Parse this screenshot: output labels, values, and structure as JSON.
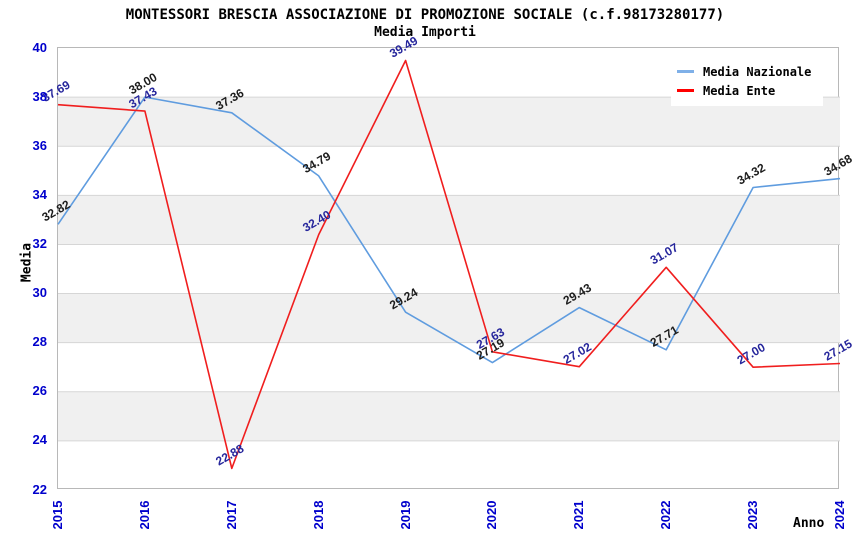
{
  "chart": {
    "title": "MONTESSORI BRESCIA ASSOCIAZIONE DI PROMOZIONE SOCIALE (c.f.98173280177)",
    "subtitle": "Media Importi",
    "xlabel": "Anno",
    "ylabel": "Media"
  },
  "legend": {
    "items": [
      {
        "label": "Media Nazionale",
        "color": "#7fb0e8"
      },
      {
        "label": "Media Ente",
        "color": "#ff0000"
      }
    ]
  },
  "colors": {
    "tick_label": "#0000cc",
    "grid_line": "#d6d6d6",
    "band_gray": "#f0f0f0",
    "frame": "#b8b8b8"
  },
  "chart_data": {
    "type": "line",
    "title": "Media Importi",
    "xlabel": "Anno",
    "ylabel": "Media",
    "x": [
      2015,
      2016,
      2017,
      2018,
      2019,
      2020,
      2021,
      2022,
      2023,
      2024
    ],
    "series": [
      {
        "name": "Media Nazionale",
        "color": "#5f9cdf",
        "label_color": "#1c1c1c",
        "values": [
          32.82,
          38.0,
          37.36,
          34.79,
          29.24,
          27.19,
          29.43,
          27.71,
          34.32,
          34.68
        ]
      },
      {
        "name": "Media Ente",
        "color": "#f01e1e",
        "label_color": "#26269c",
        "values": [
          37.69,
          37.43,
          22.88,
          32.4,
          39.49,
          27.63,
          27.02,
          31.07,
          27.0,
          27.15
        ]
      }
    ],
    "ylim": [
      22,
      40
    ],
    "ytick_step": 2,
    "grid": true,
    "alternating_bands": true,
    "legend_position": "top-right",
    "point_label_format": "2-decimals",
    "xtick_rotation": 90,
    "point_label_rotation": 30
  }
}
